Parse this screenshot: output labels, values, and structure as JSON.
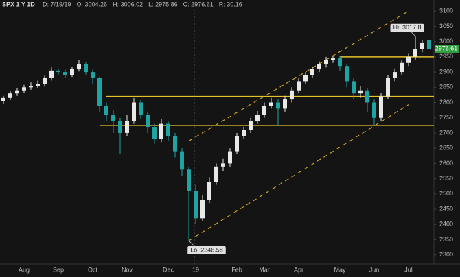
{
  "chart_data": {
    "type": "candlestick",
    "title": "SPX 1 Y 1D",
    "info": [
      "D: 7/19/19",
      "O: 3004.26",
      "H: 3006.02",
      "L: 2975.86",
      "C: 2976.61",
      "R: 30.16"
    ],
    "categories": [
      null,
      null,
      null,
      "Aug",
      null,
      null,
      null,
      null,
      "Sep",
      null,
      null,
      null,
      null,
      "Oct",
      null,
      null,
      null,
      null,
      "Nov",
      null,
      null,
      null,
      null,
      null,
      "Dec",
      null,
      null,
      null,
      "19",
      null,
      null,
      null,
      null,
      null,
      "Feb",
      null,
      null,
      null,
      "Mar",
      null,
      null,
      null,
      null,
      "Apr",
      null,
      null,
      null,
      null,
      null,
      "May",
      null,
      null,
      null,
      null,
      "Jun",
      null,
      null,
      null,
      null,
      "Jul",
      null,
      null,
      null
    ],
    "open": [
      2805,
      2815,
      2830,
      2840,
      2850,
      2855,
      2860,
      2880,
      2905,
      2900,
      2890,
      2910,
      2925,
      2900,
      2880,
      2790,
      2760,
      2740,
      2700,
      2740,
      2800,
      2760,
      2720,
      2680,
      2730,
      2690,
      2640,
      2580,
      2510,
      2420,
      2480,
      2540,
      2590,
      2600,
      2640,
      2690,
      2710,
      2740,
      2760,
      2790,
      2800,
      2780,
      2810,
      2840,
      2870,
      2890,
      2910,
      2925,
      2940,
      2945,
      2920,
      2870,
      2830,
      2840,
      2800,
      2750,
      2820,
      2880,
      2900,
      2930,
      2950,
      2975,
      3004.26
    ],
    "high": [
      2822,
      2838,
      2848,
      2858,
      2866,
      2872,
      2888,
      2915,
      2912,
      2908,
      2918,
      2940,
      2932,
      2908,
      2885,
      2800,
      2775,
      2750,
      2760,
      2815,
      2808,
      2770,
      2730,
      2745,
      2740,
      2700,
      2650,
      2590,
      2530,
      2495,
      2555,
      2600,
      2615,
      2650,
      2700,
      2720,
      2750,
      2772,
      2800,
      2815,
      2810,
      2822,
      2850,
      2880,
      2900,
      2918,
      2935,
      2950,
      2955,
      2952,
      2928,
      2880,
      2855,
      2848,
      2810,
      2830,
      2890,
      2912,
      2940,
      2960,
      3017.8,
      3005,
      3006.02
    ],
    "low": [
      2795,
      2808,
      2822,
      2832,
      2842,
      2846,
      2852,
      2872,
      2890,
      2880,
      2882,
      2902,
      2892,
      2860,
      2770,
      2740,
      2700,
      2630,
      2690,
      2730,
      2745,
      2700,
      2665,
      2670,
      2675,
      2620,
      2560,
      2346.58,
      2400,
      2410,
      2470,
      2530,
      2575,
      2590,
      2630,
      2680,
      2700,
      2730,
      2750,
      2780,
      2725,
      2770,
      2800,
      2830,
      2860,
      2880,
      2900,
      2915,
      2930,
      2905,
      2850,
      2810,
      2815,
      2770,
      2725,
      2740,
      2812,
      2870,
      2890,
      2920,
      2940,
      2965,
      2975.86
    ],
    "close": [
      2815,
      2830,
      2840,
      2850,
      2855,
      2860,
      2880,
      2905,
      2900,
      2890,
      2910,
      2925,
      2900,
      2880,
      2790,
      2760,
      2740,
      2700,
      2740,
      2800,
      2760,
      2720,
      2680,
      2730,
      2690,
      2640,
      2580,
      2510,
      2420,
      2480,
      2540,
      2590,
      2600,
      2640,
      2690,
      2710,
      2740,
      2760,
      2790,
      2800,
      2780,
      2810,
      2840,
      2870,
      2890,
      2910,
      2925,
      2940,
      2945,
      2920,
      2870,
      2830,
      2840,
      2800,
      2750,
      2820,
      2880,
      2900,
      2930,
      2950,
      2975,
      2995,
      2976.61
    ],
    "up_color": "#e8e8e8",
    "down_color": "#1fa3a3",
    "ylim": [
      2270,
      3105
    ],
    "yticks": [
      2300,
      2350,
      2400,
      2450,
      2500,
      2550,
      2600,
      2650,
      2700,
      2750,
      2800,
      2850,
      2900,
      2950,
      3000,
      3050,
      3100
    ],
    "hi_label": "Hi: 3017.8",
    "lo_label": "Lo: 2346.58",
    "last_label": "2976.61",
    "last_color": "#2e9e3e",
    "levels": [
      {
        "value": 2950,
        "from": 49
      },
      {
        "value": 2820,
        "from": 15
      },
      {
        "value": 2725,
        "from": 14
      }
    ],
    "level_color": "#e6c229",
    "channels": [
      {
        "from": [
          27,
          2674
        ],
        "to": [
          59,
          3100
        ]
      },
      {
        "from": [
          27,
          2346.58
        ],
        "to": [
          59,
          2793
        ]
      }
    ],
    "channel_color": "#c9a227"
  }
}
